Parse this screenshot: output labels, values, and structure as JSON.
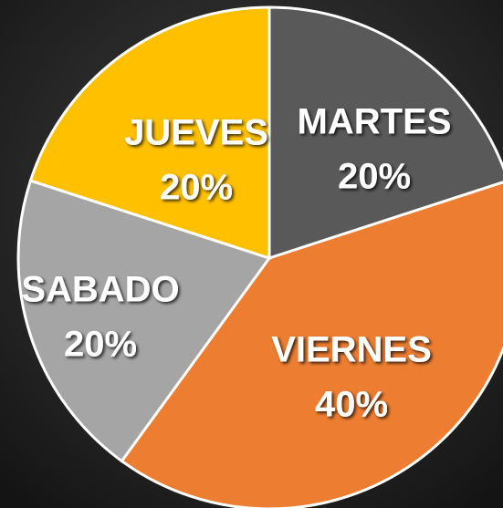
{
  "chart_data": {
    "type": "pie",
    "categories": [
      "MARTES",
      "VIERNES",
      "SABADO",
      "JUEVES"
    ],
    "values": [
      20,
      40,
      20,
      20
    ],
    "value_labels": [
      "20%",
      "40%",
      "20%",
      "20%"
    ],
    "colors": [
      "#595959",
      "#ED7D31",
      "#A5A5A5",
      "#FFC000"
    ]
  }
}
